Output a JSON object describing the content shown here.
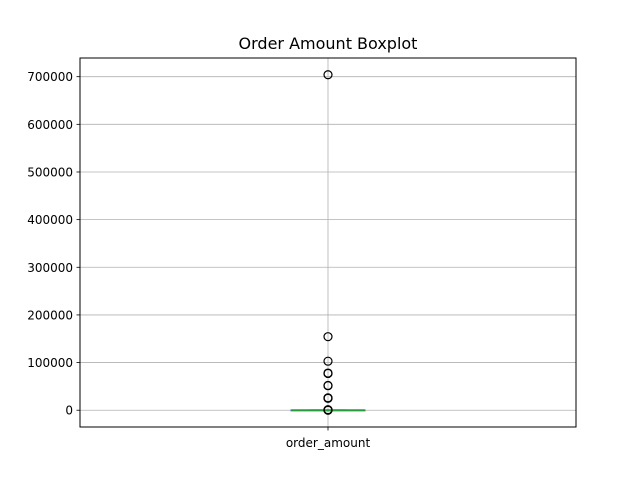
{
  "chart_data": {
    "type": "boxplot",
    "title": "Order Amount Boxplot",
    "xlabel": "",
    "ylabel": "",
    "categories": [
      "order_amount"
    ],
    "ylim": [
      -35200,
      739200
    ],
    "yticks": [
      0,
      100000,
      200000,
      300000,
      400000,
      500000,
      600000,
      700000
    ],
    "ytick_labels": [
      "0",
      "100000",
      "200000",
      "300000",
      "400000",
      "500000",
      "600000",
      "700000"
    ],
    "grid": true,
    "box": {
      "q1": 163,
      "median": 284,
      "q3": 390,
      "whisker_low": 90,
      "whisker_high": 730
    },
    "outliers": [
      0,
      800,
      1000,
      25000,
      25725,
      26000,
      51450,
      52000,
      77175,
      78000,
      102900,
      154350,
      704000
    ],
    "colors": {
      "median": "#2ca02c",
      "box": "#1f77b4",
      "grid": "#b0b0b0",
      "outlier_edge": "#000000"
    }
  }
}
